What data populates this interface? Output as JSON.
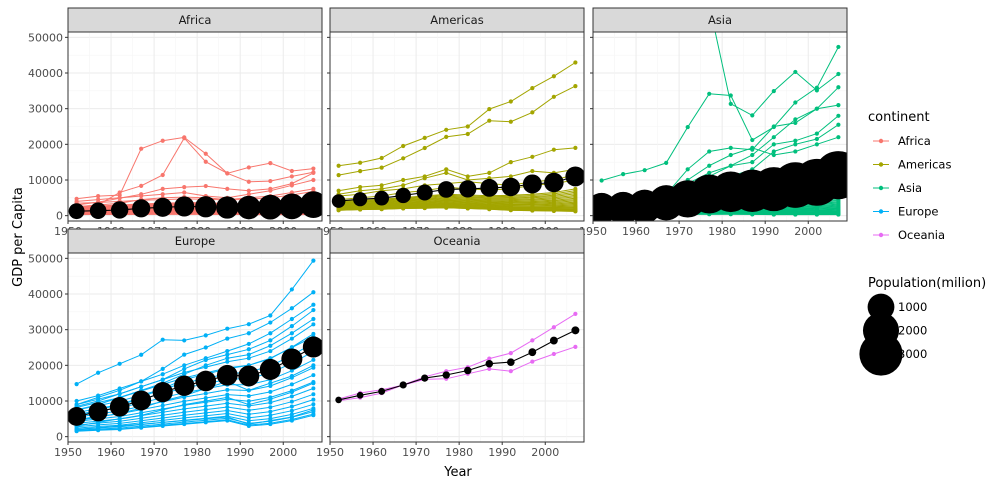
{
  "chart_data": {
    "type": "line",
    "xlabel": "Year",
    "ylabel": "GDP per Capita",
    "xlim": [
      1950,
      2009
    ],
    "ylim": [
      -1500,
      51500
    ],
    "x_ticks": [
      1950,
      1960,
      1970,
      1980,
      1990,
      2000
    ],
    "y_ticks": [
      0,
      10000,
      20000,
      30000,
      40000,
      50000
    ],
    "grid": true,
    "x": [
      1952,
      1957,
      1962,
      1967,
      1972,
      1977,
      1982,
      1987,
      1992,
      1997,
      2002,
      2007
    ],
    "panels": [
      {
        "name": "Africa",
        "color": "#F8766D",
        "mean": [
          1253,
          1385,
          1598,
          2050,
          2340,
          2586,
          2482,
          2283,
          2282,
          2379,
          2599,
          3089
        ],
        "population": [
          264,
          296,
          335,
          379,
          429,
          491,
          565,
          641,
          735,
          824,
          914,
          1000
        ],
        "highlight_lines": [
          [
            4725,
            5487,
            5768,
            18773,
            21011,
            21951,
            17364,
            11864,
            13522,
            14723,
            12521,
            13206
          ],
          [
            2449,
            3014,
            6511,
            8359,
            11401,
            21746,
            15113,
            11865,
            9500,
            9700,
            11000,
            12154
          ],
          [
            3000,
            3800,
            4900,
            6000,
            7500,
            8000,
            8300,
            7500,
            7000,
            7500,
            9000,
            12000
          ],
          [
            4000,
            4500,
            5000,
            5500,
            6000,
            6500,
            5500,
            5000,
            6000,
            7000,
            8500,
            10000
          ],
          [
            2500,
            3000,
            3500,
            4500,
            5000,
            5200,
            5000,
            4500,
            5000,
            5500,
            6500,
            7500
          ],
          [
            3500,
            3700,
            4000,
            4300,
            4500,
            4700,
            4600,
            4400,
            4600,
            5000,
            5800,
            6800
          ]
        ],
        "band": {
          "count": 30,
          "low": [
            300,
            350,
            350,
            400,
            400,
            400,
            400,
            350,
            300,
            300,
            300,
            300
          ],
          "high": [
            2500,
            2700,
            3000,
            3300,
            3500,
            3700,
            3600,
            3400,
            3400,
            3600,
            4200,
            4800
          ]
        }
      },
      {
        "name": "Americas",
        "color": "#A3A500",
        "mean": [
          4079,
          4616,
          4902,
          5668,
          6491,
          7352,
          7507,
          7793,
          8045,
          8889,
          9288,
          11003
        ],
        "population": [
          169,
          190,
          214,
          243,
          270,
          299,
          330,
          362,
          394,
          426,
          456,
          482
        ],
        "highlight_lines": [
          [
            13990,
            14847,
            16173,
            19530,
            21806,
            24073,
            25010,
            29884,
            32004,
            35767,
            39097,
            42952
          ],
          [
            11367,
            12490,
            13462,
            16077,
            18971,
            22091,
            22899,
            26627,
            26343,
            28955,
            33329,
            36319
          ],
          [
            7000,
            8000,
            8500,
            10000,
            11000,
            13000,
            11000,
            12000,
            15000,
            16500,
            18500,
            19000
          ],
          [
            6000,
            7000,
            7500,
            8500,
            10500,
            12000,
            10000,
            10500,
            11000,
            12500,
            12000,
            13000
          ],
          [
            5500,
            6000,
            7000,
            7500,
            8500,
            9000,
            9500,
            9000,
            8500,
            9500,
            10000,
            11500
          ],
          [
            4500,
            5000,
            5500,
            6500,
            7000,
            8000,
            7500,
            7200,
            7500,
            8500,
            9000,
            10000
          ]
        ],
        "band": {
          "count": 22,
          "low": [
            1500,
            1700,
            1800,
            2000,
            2100,
            2200,
            2000,
            1800,
            1500,
            1400,
            1300,
            1200
          ],
          "high": [
            4000,
            4300,
            4600,
            5100,
            5500,
            6000,
            5800,
            5600,
            5700,
            6000,
            6500,
            7500
          ]
        }
      },
      {
        "name": "Asia",
        "color": "#00BF7D",
        "mean": [
          2050,
          2110,
          2580,
          3612,
          4704,
          6073,
          6696,
          6950,
          7438,
          8567,
          9346,
          11356
        ],
        "population": [
          1395,
          1563,
          1697,
          1905,
          2151,
          2384,
          2611,
          2872,
          3133,
          3383,
          3601,
          3812
        ],
        "highlight_lines": [
          [
            9867,
            11636,
            12753,
            14805,
            24837,
            34168,
            33693,
            21199,
            24841,
            31725,
            35867,
            47307
          ],
          [
            108382,
            113523,
            95458,
            80894,
            109348,
            59265,
            31354,
            28118,
            34932,
            40301,
            35110,
            39725
          ],
          [
            3054,
            4130,
            5000,
            6000,
            13000,
            18000,
            19000,
            18500,
            25000,
            26000,
            30000,
            36000
          ],
          [
            2000,
            2500,
            3500,
            5000,
            8000,
            11000,
            14000,
            17000,
            22000,
            27000,
            30000,
            31000
          ],
          [
            3000,
            3500,
            4500,
            6000,
            9000,
            12000,
            14000,
            15000,
            20000,
            21000,
            23000,
            28000
          ],
          [
            2500,
            3000,
            4000,
            5000,
            7000,
            9000,
            11000,
            13000,
            18000,
            20000,
            21500,
            25500
          ],
          [
            3500,
            4000,
            5000,
            7000,
            10000,
            14000,
            17000,
            19000,
            17000,
            18000,
            20000,
            22000
          ],
          [
            1500,
            2000,
            2500,
            3500,
            5000,
            6000,
            7000,
            8000,
            9000,
            10000,
            11000,
            12500
          ],
          [
            1200,
            1500,
            2000,
            2500,
            3000,
            3500,
            4000,
            4500,
            5000,
            5500,
            6000,
            7500
          ]
        ],
        "band": {
          "count": 24,
          "low": [
            300,
            350,
            350,
            400,
            400,
            400,
            400,
            350,
            300,
            300,
            300,
            300
          ],
          "high": [
            2000,
            2200,
            2500,
            3000,
            3200,
            3500,
            3800,
            4000,
            4200,
            4500,
            5000,
            5500
          ]
        }
      },
      {
        "name": "Europe",
        "color": "#00B0F6",
        "mean": [
          5661,
          6963,
          8365,
          10144,
          12480,
          14284,
          15618,
          17215,
          17026,
          18852,
          21779,
          25144
        ],
        "population": [
          418,
          438,
          461,
          481,
          497,
          512,
          521,
          531,
          546,
          553,
          553,
          557
        ],
        "highlight_lines": [
          [
            14734,
            17909,
            20431,
            22966,
            27195,
            26982,
            28397,
            30282,
            31541,
            33965,
            41283,
            49357
          ],
          [
            10000,
            11500,
            13500,
            15500,
            19000,
            23000,
            25000,
            27500,
            29000,
            32000,
            36000,
            40500
          ],
          [
            9000,
            11000,
            13000,
            15500,
            17500,
            20000,
            22000,
            24000,
            26000,
            29000,
            33000,
            37000
          ],
          [
            8500,
            10000,
            12000,
            14000,
            16000,
            19000,
            21500,
            23000,
            24500,
            27000,
            31000,
            35500
          ],
          [
            7500,
            9000,
            11000,
            13000,
            15000,
            17500,
            20000,
            22000,
            23000,
            25500,
            29000,
            33000
          ],
          [
            6000,
            7500,
            9000,
            11000,
            13500,
            16000,
            17500,
            19000,
            20000,
            22000,
            25000,
            28000
          ],
          [
            4500,
            5500,
            6500,
            8000,
            10000,
            11500,
            13500,
            15500,
            13000,
            15000,
            17000,
            20000
          ],
          [
            3000,
            4000,
            5000,
            6000,
            7500,
            9000,
            10000,
            11000,
            9000,
            10500,
            12500,
            15000
          ],
          [
            2000,
            2500,
            3000,
            3500,
            4000,
            4500,
            5000,
            5500,
            3500,
            4500,
            5500,
            7500
          ]
        ],
        "band": {
          "count": 16,
          "low": [
            1500,
            1800,
            2000,
            2500,
            3000,
            3500,
            4000,
            4500,
            3000,
            3500,
            4500,
            6000
          ],
          "high": [
            9000,
            10500,
            12000,
            14000,
            16000,
            18000,
            19500,
            21000,
            22000,
            24000,
            27500,
            31500
          ]
        }
      },
      {
        "name": "Oceania",
        "color": "#E76BF3",
        "mean": [
          10298,
          11599,
          12696,
          14495,
          16417,
          17284,
          18555,
          20448,
          20894,
          23687,
          26939,
          29810
        ],
        "population": [
          10,
          11,
          13,
          15,
          16,
          18,
          19,
          20,
          21,
          23,
          24,
          25
        ],
        "highlight_lines": [
          [
            10040,
            10950,
            12217,
            14526,
            16789,
            18334,
            19477,
            21889,
            23425,
            26998,
            30688,
            34435
          ],
          [
            10557,
            12247,
            13176,
            14464,
            16046,
            16234,
            17632,
            19007,
            18363,
            21050,
            23190,
            25185
          ]
        ],
        "band": {
          "count": 0,
          "low": [],
          "high": []
        }
      }
    ],
    "legend_continent": {
      "title": "continent",
      "entries": [
        {
          "label": "Africa",
          "color": "#F8766D"
        },
        {
          "label": "Americas",
          "color": "#A3A500"
        },
        {
          "label": "Asia",
          "color": "#00BF7D"
        },
        {
          "label": "Europe",
          "color": "#00B0F6"
        },
        {
          "label": "Oceania",
          "color": "#E76BF3"
        }
      ]
    },
    "legend_population": {
      "title": "Population(milion)",
      "entries": [
        {
          "label": "1000",
          "value": 1000
        },
        {
          "label": "2000",
          "value": 2000
        },
        {
          "label": "3000",
          "value": 3000
        }
      ]
    },
    "mean_color": "#000000",
    "strip_background": "#D9D9D9",
    "panel_border_color": "#333333"
  }
}
